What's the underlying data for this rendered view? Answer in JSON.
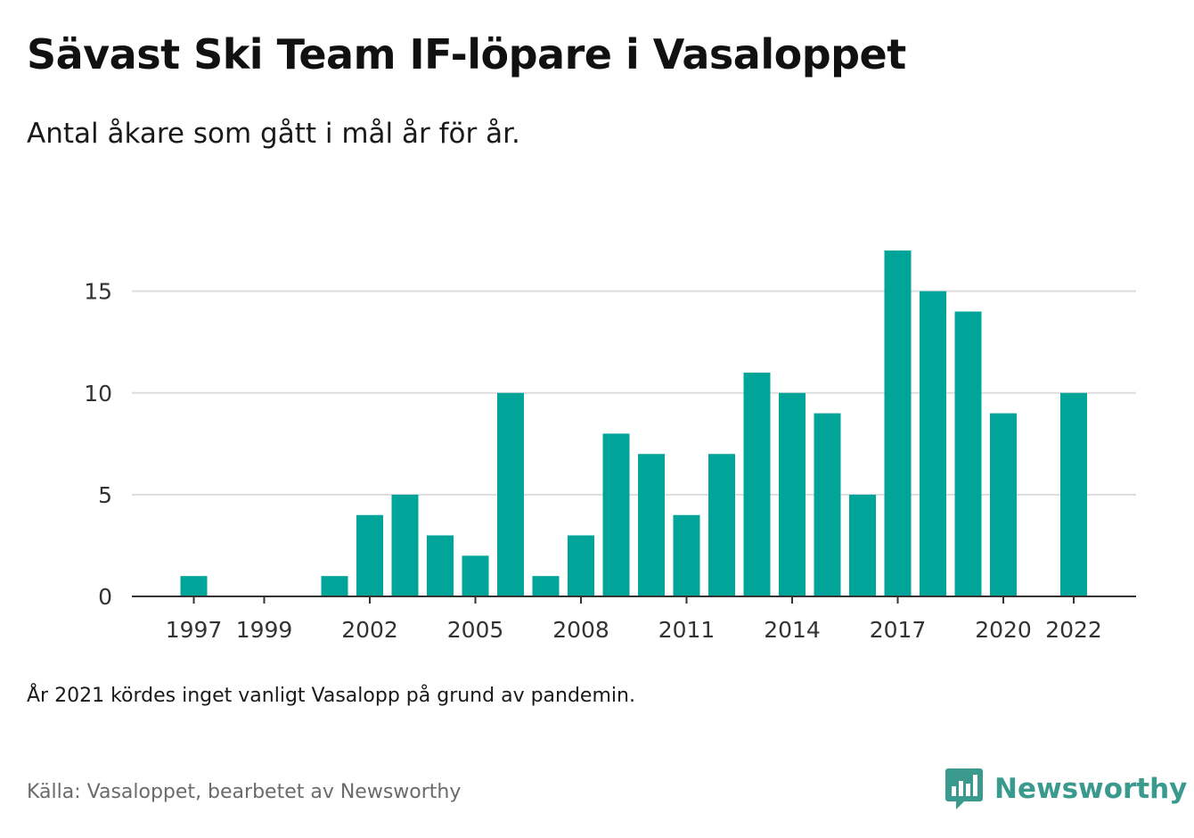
{
  "header": {
    "title": "Sävast Ski Team IF-löpare i Vasaloppet",
    "subtitle": "Antal åkare som gått i mål år för år."
  },
  "footer": {
    "note": "År 2021 kördes inget vanligt Vasalopp på grund av pandemin.",
    "source": "Källa: Vasaloppet, bearbetet av Newsworthy",
    "brand": "Newsworthy",
    "brand_color": "#3a9a8e"
  },
  "chart_data": {
    "type": "bar",
    "categories": [
      1997,
      1998,
      1999,
      2000,
      2001,
      2002,
      2003,
      2004,
      2005,
      2006,
      2007,
      2008,
      2009,
      2010,
      2011,
      2012,
      2013,
      2014,
      2015,
      2016,
      2017,
      2018,
      2019,
      2020,
      2021,
      2022
    ],
    "values": [
      1,
      0,
      0,
      0,
      1,
      4,
      5,
      3,
      2,
      10,
      1,
      3,
      8,
      7,
      4,
      7,
      11,
      10,
      9,
      5,
      17,
      15,
      14,
      9,
      null,
      10
    ],
    "x_tick_labels": [
      "1997",
      "1999",
      "2002",
      "2005",
      "2008",
      "2011",
      "2014",
      "2017",
      "2020",
      "2022"
    ],
    "y_ticks": [
      0,
      5,
      10,
      15
    ],
    "ylim": [
      0,
      17
    ],
    "bar_color": "#00a499",
    "grid_color": "#dddddd",
    "axis_color": "#333333",
    "grid": true,
    "title": "Sävast Ski Team IF-löpare i Vasaloppet",
    "subtitle": "Antal åkare som gått i mål år för år.",
    "xlabel": "",
    "ylabel": ""
  }
}
